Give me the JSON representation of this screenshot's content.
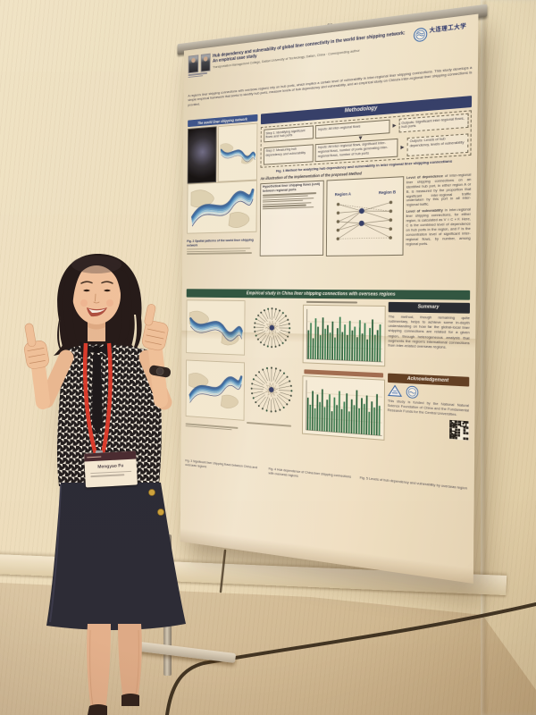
{
  "palette": {
    "wall": "#ebe0c3",
    "wall_side": "#cdbb97",
    "carpet_orange": "#e8a827",
    "carpet_dark": "#b06a0e",
    "poster_paper": "#f2ead8",
    "band_navy": "#2c3a6b",
    "band_green": "#265141",
    "band_summary": "#1d2531",
    "band_brown": "#5a3a22",
    "lanyard_red": "#d43a2e",
    "skirt_navy": "#20263a",
    "bar_green_dark": "#1d5c3a",
    "bar_green_light": "#2e7d52"
  },
  "poster": {
    "title": "Hub dependency and vulnerability of global liner connectivity in the world liner shipping network: An empirical case study",
    "authors_line": "Transportation Management College, Dalian University of Technology, Dalian, China · Corresponding author",
    "logo_text": "大连理工大学",
    "intro": "A region's liner shipping connections with overseas regions rely on hub ports, which implies a certain level of vulnerability in inter-regional liner shipping connections. This study develops a simple empirical framework that seeks to identify hub ports, measure levels of hub dependency and vulnerability, and an empirical study on China's inter-regional liner shipping connections is provided.",
    "left_column": {
      "header": "The world liner shipping network",
      "caption": "Fig. 2 Spatial patterns of the world liner shipping network"
    },
    "methodology": {
      "header": "Methodology",
      "step1_label": "Step 1: Identifying significant flows and hub ports",
      "step1_inputs": "Inputs: All inter-regional flows",
      "step1_outputs": "Outputs: Significant inter-regional flows, hub ports",
      "step2_label": "Step 2: Measuring hub dependency and vulnerability",
      "step2_inputs": "Inputs: All inter-regional flows, significant inter-regional flows, number of ports generating inter-regional flows, number of hub ports",
      "step2_outputs": "Outputs: Levels of hub dependency, levels of vulnerability",
      "caption": "Fig. 1 Method for analyzing hub dependency and vulnerability in inter-regional liner shipping connections"
    },
    "illustration": {
      "heading": "An illustration of the implementation of the proposed Method",
      "list_title": "Hypothetical liner shipping flows (unit) between regional ports",
      "label_a": "Region A",
      "label_b": "Region B",
      "para1_lead": "Level of dependence",
      "para1": "of inter-regional liner shipping connections on an identified hub port, in either region A or B, is measured by the proportion that significant inter-regional traffic undertaken by this port in all inter-regional traffic.",
      "para2_lead": "Level of vulnerability",
      "para2": "in inter-regional liner shipping connections, for either region, is calculated as V = C × F. Here, C is the combined level of dependence on hub ports in the region, and F is the concentration level of significant inter-regional flows, by number, among regional ports."
    },
    "empirical": {
      "header": "Empirical study in China liner shipping connections with overseas regions",
      "caption_maps": "Fig. 3 Significant liner shipping flows between China and overseas regions",
      "caption_radial": "Fig. 4 Hub dependence of China liner shipping connections with overseas regions",
      "caption_bars": "Fig. 5 Levels of hub dependency and vulnerability by overseas region"
    },
    "summary": {
      "header": "Summary",
      "text": "The method, though remaining quite rudimentary, helps to achieve some in-depth understanding on how far the global-local liner shipping connections are related for a given region, through heterogeneous analysis that augments the region's international connections from inter-related overseas regions."
    },
    "acknowledgement": {
      "header": "Acknowledgement",
      "text": "This study is funded by the National Natural Science Foundation of China and the Fundamental Research Funds for the Central Universities."
    },
    "charts": {
      "bars1": [
        62,
        78,
        45,
        88,
        70,
        52,
        90,
        66,
        74,
        58,
        82,
        48,
        68,
        92,
        60,
        76,
        54,
        84,
        64,
        72,
        50,
        86,
        58,
        80,
        46,
        70,
        88,
        56,
        66,
        78
      ],
      "bars2": [
        70,
        55,
        85,
        48,
        78,
        62,
        90,
        52,
        68,
        80,
        44,
        74,
        58,
        88,
        50,
        66,
        84,
        46,
        72,
        60,
        92,
        54,
        76,
        64,
        82,
        48,
        70,
        58,
        86,
        62
      ]
    }
  },
  "person": {
    "badge_name": "Mengyao Fu"
  }
}
